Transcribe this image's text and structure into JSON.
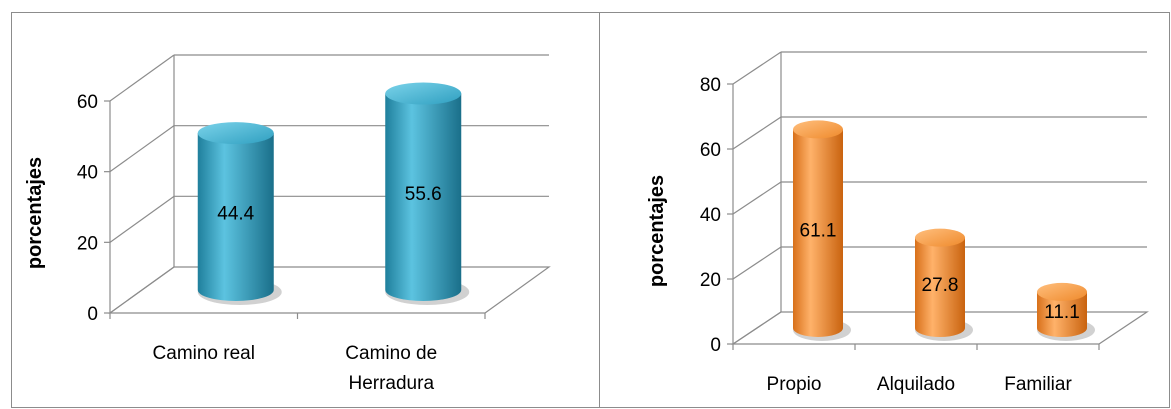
{
  "chart_data": [
    {
      "type": "bar",
      "categories": [
        "Camino real",
        "Camino de Herradura"
      ],
      "values": [
        44.4,
        55.6
      ],
      "value_labels": [
        "44.4",
        "55.6"
      ],
      "title": "",
      "xlabel": "",
      "ylabel": "porcentajes",
      "ylim": [
        0,
        60
      ],
      "yticks": [
        "0",
        "20",
        "40",
        "60"
      ],
      "grid": true,
      "color": "#2e9fc0"
    },
    {
      "type": "bar",
      "categories": [
        "Propio",
        "Alquilado",
        "Familiar"
      ],
      "values": [
        61.1,
        27.8,
        11.1
      ],
      "value_labels": [
        "61.1",
        "27.8",
        "11.1"
      ],
      "title": "",
      "xlabel": "",
      "ylabel": "porcentajes",
      "ylim": [
        0,
        80
      ],
      "yticks": [
        "0",
        "20",
        "40",
        "60",
        "80"
      ],
      "grid": true,
      "color": "#f08c2e"
    }
  ]
}
